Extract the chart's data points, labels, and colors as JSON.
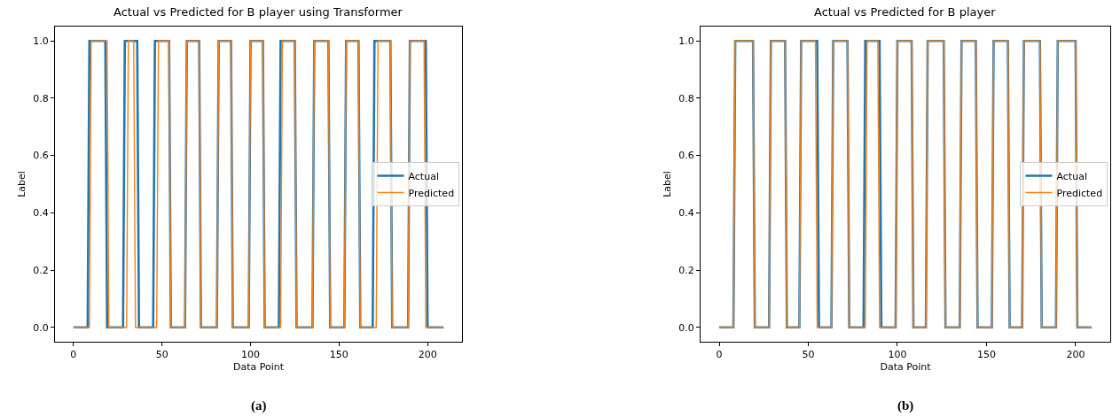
{
  "chart_data": [
    {
      "type": "line",
      "title": "Actual vs Predicted for B player using Transformer",
      "xlabel": "Data Point",
      "ylabel": "Label",
      "xlim": [
        -10.45,
        219.45
      ],
      "xticks": [
        0,
        50,
        100,
        150,
        200
      ],
      "ylim": [
        -0.05,
        1.05
      ],
      "yticks": [
        {
          "value": 0,
          "label": "0.0"
        },
        {
          "value": 0.2,
          "label": "0.2"
        },
        {
          "value": 0.4,
          "label": "0.4"
        },
        {
          "value": 0.6,
          "label": "0.6"
        },
        {
          "value": 0.8,
          "label": "0.8"
        },
        {
          "value": 1,
          "label": "1.0"
        }
      ],
      "legend": "right",
      "annotations": [
        "(a)"
      ],
      "series": [
        {
          "name": "Actual",
          "color": "#1f77b4",
          "x": [
            0,
            8,
            9,
            18,
            19,
            28,
            29,
            36,
            37,
            45,
            46,
            54,
            55,
            63,
            64,
            71,
            72,
            81,
            82,
            89,
            90,
            99,
            100,
            107,
            108,
            116,
            117,
            125,
            126,
            135,
            136,
            144,
            145,
            153,
            154,
            161,
            162,
            169,
            170,
            179,
            180,
            189,
            190,
            199,
            200,
            209
          ],
          "values": [
            0,
            0,
            1,
            1,
            0,
            0,
            1,
            1,
            0,
            0,
            1,
            1,
            0,
            0,
            1,
            1,
            0,
            0,
            1,
            1,
            0,
            0,
            1,
            1,
            0,
            0,
            1,
            1,
            0,
            0,
            1,
            1,
            0,
            0,
            1,
            1,
            0,
            0,
            1,
            1,
            0,
            0,
            1,
            1,
            0,
            0
          ]
        },
        {
          "name": "Predicted",
          "color": "#ff7f0e",
          "x": [
            0,
            9,
            10,
            19,
            20,
            30,
            31,
            34,
            35,
            47,
            48,
            54,
            55,
            63,
            64,
            71,
            72,
            81,
            82,
            89,
            90,
            99,
            100,
            107,
            108,
            117,
            118,
            125,
            126,
            135,
            136,
            144,
            145,
            153,
            154,
            161,
            162,
            171,
            172,
            179,
            180,
            189,
            190,
            198,
            199,
            209
          ],
          "values": [
            0,
            0,
            1,
            1,
            0,
            0,
            1,
            1,
            0,
            0,
            1,
            1,
            0,
            0,
            1,
            1,
            0,
            0,
            1,
            1,
            0,
            0,
            1,
            1,
            0,
            0,
            1,
            1,
            0,
            0,
            1,
            1,
            0,
            0,
            1,
            1,
            0,
            0,
            1,
            1,
            0,
            0,
            1,
            1,
            0,
            0
          ]
        }
      ]
    },
    {
      "type": "line",
      "title": "Actual vs Predicted for B player",
      "xlabel": "Data Point",
      "ylabel": "Label",
      "xlim": [
        -10.45,
        219.45
      ],
      "xticks": [
        0,
        50,
        100,
        150,
        200
      ],
      "ylim": [
        -0.05,
        1.05
      ],
      "yticks": [
        {
          "value": 0,
          "label": "0.0"
        },
        {
          "value": 0.2,
          "label": "0.2"
        },
        {
          "value": 0.4,
          "label": "0.4"
        },
        {
          "value": 0.6,
          "label": "0.6"
        },
        {
          "value": 0.8,
          "label": "0.8"
        },
        {
          "value": 1,
          "label": "1.0"
        }
      ],
      "legend": "right",
      "annotations": [
        "(b)"
      ],
      "series": [
        {
          "name": "Actual",
          "color": "#1f77b4",
          "x": [
            0,
            8,
            9,
            19,
            20,
            28,
            29,
            37,
            38,
            45,
            46,
            55,
            56,
            63,
            64,
            72,
            73,
            81,
            82,
            90,
            91,
            99,
            100,
            108,
            109,
            116,
            117,
            126,
            127,
            135,
            136,
            144,
            145,
            153,
            154,
            162,
            163,
            170,
            171,
            180,
            181,
            189,
            190,
            200,
            201,
            209
          ],
          "values": [
            0,
            0,
            1,
            1,
            0,
            0,
            1,
            1,
            0,
            0,
            1,
            1,
            0,
            0,
            1,
            1,
            0,
            0,
            1,
            1,
            0,
            0,
            1,
            1,
            0,
            0,
            1,
            1,
            0,
            0,
            1,
            1,
            0,
            0,
            1,
            1,
            0,
            0,
            1,
            1,
            0,
            0,
            1,
            1,
            0,
            0
          ]
        },
        {
          "name": "Predicted",
          "color": "#ff7f0e",
          "x": [
            0,
            8,
            9,
            19,
            20,
            28,
            29,
            37,
            38,
            45,
            46,
            54,
            55,
            63,
            64,
            72,
            73,
            82,
            83,
            89,
            90,
            99,
            100,
            108,
            109,
            116,
            117,
            126,
            127,
            135,
            136,
            144,
            145,
            153,
            154,
            162,
            163,
            170,
            171,
            180,
            181,
            189,
            190,
            200,
            201,
            209
          ],
          "values": [
            0,
            0,
            1,
            1,
            0,
            0,
            1,
            1,
            0,
            0,
            1,
            1,
            0,
            0,
            1,
            1,
            0,
            0,
            1,
            1,
            0,
            0,
            1,
            1,
            0,
            0,
            1,
            1,
            0,
            0,
            1,
            1,
            0,
            0,
            1,
            1,
            0,
            0,
            1,
            1,
            0,
            0,
            1,
            1,
            0,
            0
          ]
        }
      ]
    }
  ]
}
